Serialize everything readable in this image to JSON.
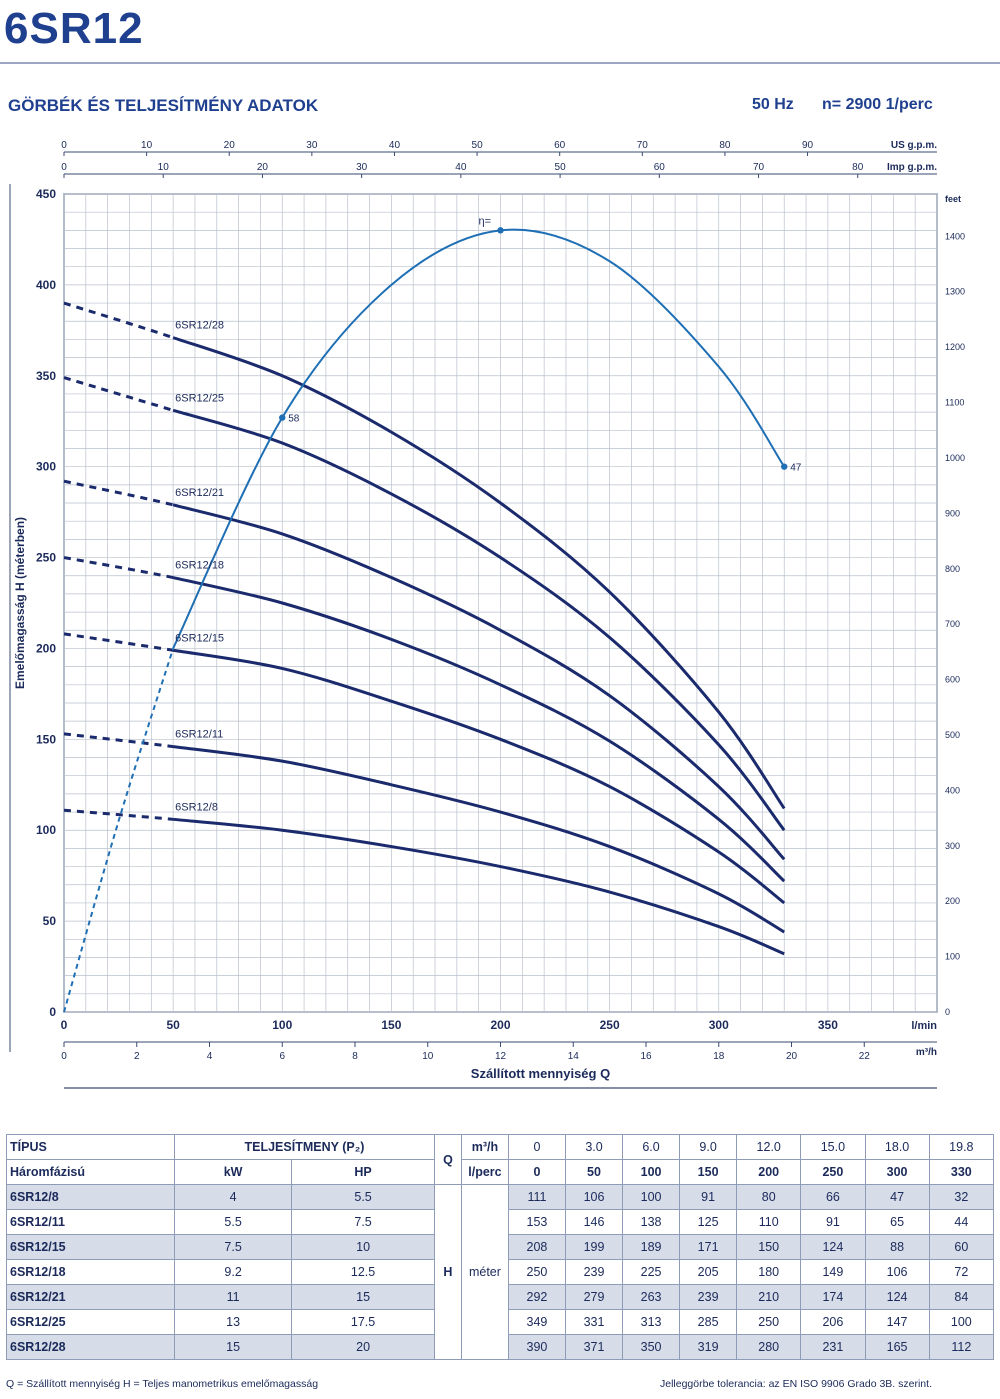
{
  "header": {
    "model": "6SR12",
    "section_title": "GÖRBÉK ÉS TELJESÍTMÉNY ADATOK",
    "frequency": "50 Hz",
    "speed": "n= 2900 1/perc"
  },
  "chart_data": {
    "type": "line",
    "ylabel": "Emelőmagasság H (méterben)",
    "xlabel": "Szállított mennyiség Q",
    "x_unit_lmin": "l/min",
    "x_unit_m3h": "m³/h",
    "x_unit_usgpm": "US g.p.m.",
    "x_unit_impgpm": "Imp g.p.m.",
    "y_unit_ft": "feet",
    "ylim": [
      0,
      450
    ],
    "xlim_lmin": [
      0,
      400
    ],
    "y_ticks": [
      0,
      50,
      100,
      150,
      200,
      250,
      300,
      350,
      400,
      450
    ],
    "x_ticks_lmin": [
      0,
      50,
      100,
      150,
      200,
      250,
      300,
      350
    ],
    "x_ticks_m3h": [
      0,
      2,
      4,
      6,
      8,
      10,
      12,
      14,
      16,
      18,
      20,
      22
    ],
    "x_ticks_usgpm": [
      0,
      10,
      20,
      30,
      40,
      50,
      60,
      70,
      80,
      90
    ],
    "x_ticks_impgpm": [
      0,
      10,
      20,
      30,
      40,
      50,
      60,
      70,
      80
    ],
    "y_ticks_ft": [
      0,
      100,
      200,
      300,
      400,
      500,
      600,
      700,
      800,
      900,
      1000,
      1100,
      1200,
      1300,
      1400
    ],
    "grid": true,
    "series": [
      {
        "name": "6SR12/28",
        "x": [
          0,
          50,
          100,
          150,
          200,
          250,
          300,
          330
        ],
        "y": [
          390,
          371,
          350,
          319,
          280,
          231,
          165,
          112
        ]
      },
      {
        "name": "6SR12/25",
        "x": [
          0,
          50,
          100,
          150,
          200,
          250,
          300,
          330
        ],
        "y": [
          349,
          331,
          313,
          285,
          250,
          206,
          147,
          100
        ]
      },
      {
        "name": "6SR12/21",
        "x": [
          0,
          50,
          100,
          150,
          200,
          250,
          300,
          330
        ],
        "y": [
          292,
          279,
          263,
          239,
          210,
          174,
          124,
          84
        ]
      },
      {
        "name": "6SR12/18",
        "x": [
          0,
          50,
          100,
          150,
          200,
          250,
          300,
          330
        ],
        "y": [
          250,
          239,
          225,
          205,
          180,
          149,
          106,
          72
        ]
      },
      {
        "name": "6SR12/15",
        "x": [
          0,
          50,
          100,
          150,
          200,
          250,
          300,
          330
        ],
        "y": [
          208,
          199,
          189,
          171,
          150,
          124,
          88,
          60
        ]
      },
      {
        "name": "6SR12/11",
        "x": [
          0,
          50,
          100,
          150,
          200,
          250,
          300,
          330
        ],
        "y": [
          153,
          146,
          138,
          125,
          110,
          91,
          65,
          44
        ]
      },
      {
        "name": "6SR12/8",
        "x": [
          0,
          50,
          100,
          150,
          200,
          250,
          300,
          330
        ],
        "y": [
          111,
          106,
          100,
          91,
          80,
          66,
          47,
          32
        ]
      }
    ],
    "efficiency": {
      "label": "η=",
      "dashed_x": [
        0,
        25,
        50
      ],
      "dashed_y": [
        0,
        105,
        200
      ],
      "x": [
        50,
        100,
        150,
        200,
        250,
        300,
        330
      ],
      "y": [
        200,
        327,
        400,
        430,
        413,
        355,
        300
      ],
      "marks": [
        {
          "x": 100,
          "y": 327,
          "label": "58"
        },
        {
          "x": 200,
          "y": 430,
          "label": ""
        },
        {
          "x": 330,
          "y": 300,
          "label": "47"
        }
      ]
    }
  },
  "table": {
    "h_type": "TÍPUS",
    "h_phase": "Háromfázisú",
    "h_power": "TELJESÍTMENY (P₂)",
    "h_kw": "kW",
    "h_hp": "HP",
    "h_q": "Q",
    "h_m3h": "m³/h",
    "h_lperc": "l/perc",
    "h_h": "H",
    "h_meter": "méter",
    "q_m3h": [
      "0",
      "3.0",
      "6.0",
      "9.0",
      "12.0",
      "15.0",
      "18.0",
      "19.8"
    ],
    "q_lperc": [
      "0",
      "50",
      "100",
      "150",
      "200",
      "250",
      "300",
      "330"
    ],
    "rows": [
      {
        "model": "6SR12/8",
        "kw": "4",
        "hp": "5.5",
        "h": [
          "111",
          "106",
          "100",
          "91",
          "80",
          "66",
          "47",
          "32"
        ]
      },
      {
        "model": "6SR12/11",
        "kw": "5.5",
        "hp": "7.5",
        "h": [
          "153",
          "146",
          "138",
          "125",
          "110",
          "91",
          "65",
          "44"
        ]
      },
      {
        "model": "6SR12/15",
        "kw": "7.5",
        "hp": "10",
        "h": [
          "208",
          "199",
          "189",
          "171",
          "150",
          "124",
          "88",
          "60"
        ]
      },
      {
        "model": "6SR12/18",
        "kw": "9.2",
        "hp": "12.5",
        "h": [
          "250",
          "239",
          "225",
          "205",
          "180",
          "149",
          "106",
          "72"
        ]
      },
      {
        "model": "6SR12/21",
        "kw": "11",
        "hp": "15",
        "h": [
          "292",
          "279",
          "263",
          "239",
          "210",
          "174",
          "124",
          "84"
        ]
      },
      {
        "model": "6SR12/25",
        "kw": "13",
        "hp": "17.5",
        "h": [
          "349",
          "331",
          "313",
          "285",
          "250",
          "206",
          "147",
          "100"
        ]
      },
      {
        "model": "6SR12/28",
        "kw": "15",
        "hp": "20",
        "h": [
          "390",
          "371",
          "350",
          "319",
          "280",
          "231",
          "165",
          "112"
        ]
      }
    ]
  },
  "footer": {
    "left": "Q = Szállított mennyiség   H = Teljes manometrikus emelőmagasság",
    "right": "Jelleggörbe tolerancia: az EN ISO 9906 Grado 3B. szerint."
  },
  "colors": {
    "curve": "#1a2a6c",
    "efficiency": "#1f6fb5",
    "grid": "#b9c0cc",
    "text": "#1b2a5a",
    "shade": "#d6dce8"
  }
}
